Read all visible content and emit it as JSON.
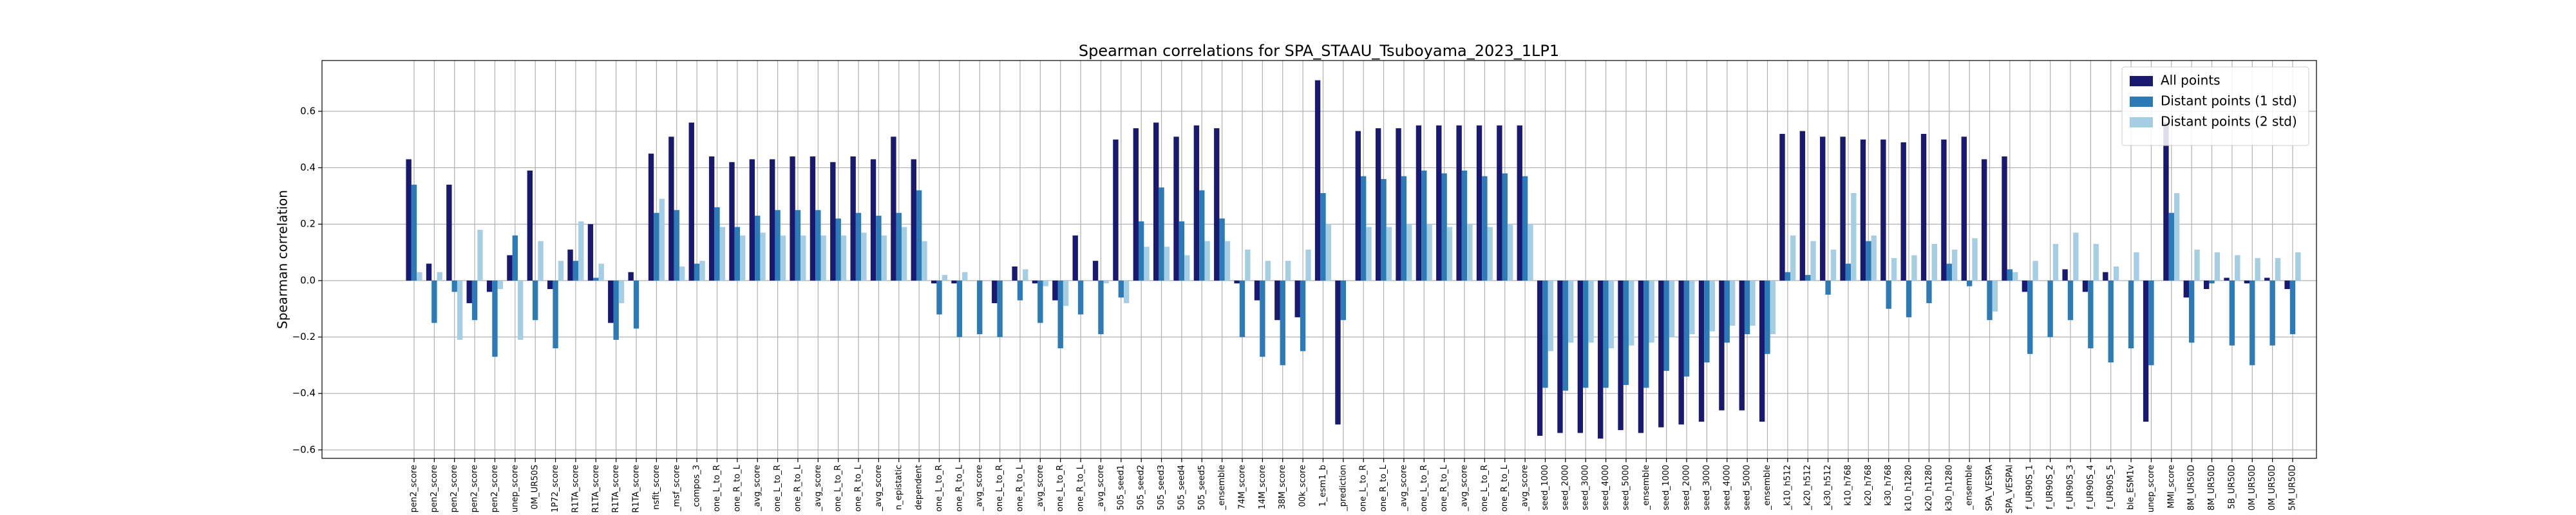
{
  "chart_data": {
    "type": "bar",
    "title": "Spearman correlations for SPA_STAAU_Tsuboyama_2023_1LP1",
    "y_label": "Spearman correlation",
    "categories": [
      "pen2_score",
      "pen2_score",
      "pen2_score",
      "pen2_score",
      "pen2_score",
      "unep_score",
      "0M_UR50S",
      "1P72_score",
      "R1TA_score",
      "R1TA_score",
      "R1TA_score",
      "R1TA_score",
      "nsfit_score",
      "_msf_score",
      "_compos_3",
      "one_L_to_R",
      "one_R_to_L",
      "_avg_score",
      "one_L_to_R",
      "one_R_to_L",
      "_avg_score",
      "one_L_to_R",
      "one_R_to_L",
      "_avg_score",
      "n_epistatic",
      "dependent",
      "one_L_to_R",
      "one_R_to_L",
      "_avg_score",
      "one_L_to_R",
      "one_R_to_L",
      "_avg_score",
      "one_L_to_R",
      "one_R_to_L",
      "_avg_score",
      "505_seed1",
      "505_seed2",
      "505_seed3",
      "505_seed4",
      "505_seed5",
      "_ensemble",
      "74M_score",
      "14M_score",
      "38M_score",
      "00k_score",
      "1_esm1_b",
      "_prediction",
      "one_L_to_R",
      "one_R_to_L",
      "_avg_score",
      "one_L_to_R",
      "one_R_to_L",
      "_avg_score",
      "one_L_to_R",
      "one_R_to_L",
      "_avg_score",
      "seed_1000",
      "seed_2000",
      "seed_3000",
      "seed_4000",
      "seed_5000",
      "_ensemble",
      "seed_1000",
      "seed_2000",
      "seed_3000",
      "seed_4000",
      "seed_5000",
      "_ensemble",
      "_k10_h512",
      "_k20_h512",
      "_k30_h512",
      "k10_h768",
      "k20_h768",
      "k30_h768",
      "k10_h1280",
      "k20_h1280",
      "k30_h1280",
      "_ensemble",
      "SPA_VESPA",
      "SPA_VESPAl",
      "f_UR90S_1",
      "f_UR90S_2",
      "f_UR90S_3",
      "f_UR90S_4",
      "f_UR90S_5",
      "ble_ESM1v",
      "unep_score",
      "MMI_score",
      "8M_UR50D",
      "8M_UR50D",
      "5B_UR50D",
      "0M_UR50D",
      "0M_UR50D",
      "5M_UR50D"
    ],
    "series": [
      {
        "name": "All points",
        "color": "#191970",
        "values": [
          0.43,
          0.06,
          0.34,
          -0.08,
          -0.04,
          0.09,
          0.39,
          -0.03,
          0.11,
          0.2,
          -0.15,
          0.03,
          0.45,
          0.51,
          0.56,
          0.44,
          0.42,
          0.43,
          0.43,
          0.44,
          0.44,
          0.42,
          0.44,
          0.43,
          0.51,
          0.43,
          -0.01,
          -0.01,
          0.0,
          -0.08,
          0.05,
          -0.01,
          -0.07,
          0.16,
          0.07,
          0.5,
          0.54,
          0.56,
          0.51,
          0.55,
          0.54,
          -0.01,
          -0.07,
          -0.14,
          -0.13,
          0.71,
          -0.51,
          0.53,
          0.54,
          0.54,
          0.55,
          0.55,
          0.55,
          0.55,
          0.55,
          0.55,
          -0.55,
          -0.54,
          -0.54,
          -0.56,
          -0.53,
          -0.54,
          -0.52,
          -0.51,
          -0.5,
          -0.46,
          -0.46,
          -0.5,
          0.52,
          0.53,
          0.51,
          0.51,
          0.5,
          0.5,
          0.49,
          0.52,
          0.5,
          0.51,
          0.43,
          0.44,
          -0.04,
          0.0,
          0.04,
          -0.04,
          0.03,
          0.0,
          -0.5,
          0.56,
          -0.06,
          -0.03,
          0.01,
          -0.01,
          0.01,
          -0.03
        ]
      },
      {
        "name": "Distant points (1 std)",
        "color": "#2c7bb6",
        "values": [
          0.34,
          -0.15,
          -0.04,
          -0.14,
          -0.27,
          0.16,
          -0.14,
          -0.24,
          0.07,
          0.01,
          -0.21,
          -0.17,
          0.24,
          0.25,
          0.06,
          0.26,
          0.19,
          0.23,
          0.25,
          0.25,
          0.25,
          0.22,
          0.24,
          0.23,
          0.24,
          0.32,
          -0.12,
          -0.2,
          -0.19,
          -0.2,
          -0.07,
          -0.15,
          -0.24,
          -0.12,
          -0.19,
          -0.06,
          0.21,
          0.33,
          0.21,
          0.32,
          0.22,
          -0.2,
          -0.27,
          -0.3,
          -0.25,
          0.31,
          -0.14,
          0.37,
          0.36,
          0.37,
          0.39,
          0.38,
          0.39,
          0.37,
          0.38,
          0.37,
          -0.38,
          -0.39,
          -0.38,
          -0.38,
          -0.37,
          -0.38,
          -0.32,
          -0.34,
          -0.29,
          -0.22,
          -0.19,
          -0.26,
          0.03,
          0.02,
          -0.05,
          0.06,
          0.14,
          -0.1,
          -0.13,
          -0.08,
          0.06,
          -0.02,
          -0.14,
          0.04,
          -0.26,
          -0.2,
          -0.14,
          -0.24,
          -0.29,
          -0.24,
          -0.3,
          0.24,
          -0.22,
          -0.01,
          -0.23,
          -0.3,
          -0.23,
          -0.19
        ]
      },
      {
        "name": "Distant points (2 std)",
        "color": "#a6cee3",
        "values": [
          0.03,
          0.03,
          -0.21,
          0.18,
          -0.03,
          -0.21,
          0.14,
          0.07,
          0.21,
          0.06,
          -0.08,
          0.0,
          0.29,
          0.05,
          0.07,
          0.19,
          0.16,
          0.17,
          0.16,
          0.16,
          0.16,
          0.16,
          0.17,
          0.16,
          0.19,
          0.14,
          0.02,
          0.03,
          0.0,
          0.0,
          0.04,
          -0.02,
          -0.09,
          0.0,
          -0.01,
          -0.08,
          0.12,
          0.12,
          0.09,
          0.14,
          0.14,
          0.11,
          0.07,
          0.07,
          0.11,
          0.2,
          0.0,
          0.19,
          0.19,
          0.2,
          0.2,
          0.19,
          0.2,
          0.19,
          0.2,
          0.2,
          -0.25,
          -0.22,
          -0.22,
          -0.24,
          -0.23,
          -0.22,
          -0.2,
          -0.19,
          -0.18,
          -0.16,
          -0.16,
          -0.19,
          0.16,
          0.14,
          0.11,
          0.31,
          0.16,
          0.08,
          0.09,
          0.13,
          0.11,
          0.15,
          -0.11,
          0.03,
          0.07,
          0.13,
          0.17,
          0.13,
          0.05,
          0.1,
          0.0,
          0.31,
          0.11,
          0.1,
          0.09,
          0.08,
          0.08,
          0.1
        ]
      }
    ],
    "ylim": [
      -0.63,
      0.78
    ],
    "yticks": [
      {
        "value": -0.6,
        "label": "−0.6"
      },
      {
        "value": -0.4,
        "label": "−0.4"
      },
      {
        "value": -0.2,
        "label": "−0.2"
      },
      {
        "value": 0,
        "label": "0.0"
      },
      0.2,
      0.4,
      0.6
    ],
    "grid": true,
    "legend": "upper right"
  }
}
